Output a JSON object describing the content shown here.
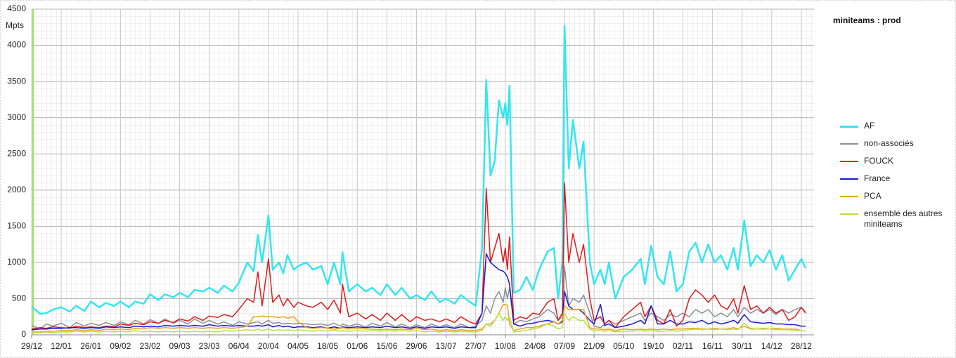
{
  "chart_data": {
    "type": "line",
    "title": "miniteams : prod",
    "y_label": "Mpts",
    "xlim": [
      0,
      370
    ],
    "ylim": [
      0,
      4500
    ],
    "yticks": [
      0,
      500,
      1000,
      1500,
      2000,
      2500,
      3000,
      3500,
      4000,
      4500
    ],
    "xticks": [
      {
        "value": 0,
        "label": "29/12"
      },
      {
        "value": 14,
        "label": "12/01"
      },
      {
        "value": 28,
        "label": "26/01"
      },
      {
        "value": 42,
        "label": "09/02"
      },
      {
        "value": 56,
        "label": "23/02"
      },
      {
        "value": 70,
        "label": "09/03"
      },
      {
        "value": 84,
        "label": "23/03"
      },
      {
        "value": 98,
        "label": "06/04"
      },
      {
        "value": 112,
        "label": "20/04"
      },
      {
        "value": 126,
        "label": "04/05"
      },
      {
        "value": 140,
        "label": "18/05"
      },
      {
        "value": 154,
        "label": "01/06"
      },
      {
        "value": 168,
        "label": "15/06"
      },
      {
        "value": 182,
        "label": "29/06"
      },
      {
        "value": 196,
        "label": "13/07"
      },
      {
        "value": 210,
        "label": "27/07"
      },
      {
        "value": 224,
        "label": "10/08"
      },
      {
        "value": 238,
        "label": "24/08"
      },
      {
        "value": 252,
        "label": "07/09"
      },
      {
        "value": 266,
        "label": "21/09"
      },
      {
        "value": 280,
        "label": "05/10"
      },
      {
        "value": 294,
        "label": "19/10"
      },
      {
        "value": 308,
        "label": "02/11"
      },
      {
        "value": 322,
        "label": "16/11"
      },
      {
        "value": 336,
        "label": "30/11"
      },
      {
        "value": 350,
        "label": "14/12"
      },
      {
        "value": 364,
        "label": "28/12"
      }
    ],
    "grid": true,
    "x": [
      0,
      4,
      7,
      10,
      14,
      18,
      21,
      25,
      28,
      32,
      35,
      39,
      42,
      46,
      49,
      53,
      56,
      60,
      63,
      67,
      70,
      74,
      77,
      81,
      84,
      88,
      91,
      95,
      98,
      102,
      105,
      107,
      109,
      112,
      114,
      117,
      119,
      121,
      124,
      126,
      130,
      133,
      137,
      140,
      143,
      146,
      147,
      150,
      154,
      158,
      161,
      165,
      168,
      172,
      175,
      179,
      182,
      186,
      189,
      193,
      196,
      200,
      203,
      207,
      210,
      213,
      215,
      217,
      219,
      221,
      223,
      224,
      225,
      226,
      228,
      231,
      234,
      237,
      240,
      244,
      247,
      249,
      251,
      252,
      254,
      256,
      259,
      261,
      264,
      266,
      269,
      271,
      273,
      276,
      280,
      284,
      288,
      290,
      293,
      296,
      299,
      302,
      305,
      308,
      311,
      314,
      317,
      320,
      323,
      326,
      329,
      332,
      334,
      337,
      340,
      343,
      346,
      349,
      352,
      355,
      358,
      361,
      364,
      366
    ],
    "series": [
      {
        "name": "AF",
        "color": "#33e6f0",
        "width": 2.5,
        "values": [
          390,
          290,
          300,
          350,
          380,
          320,
          400,
          330,
          460,
          380,
          440,
          400,
          460,
          380,
          460,
          430,
          560,
          480,
          560,
          520,
          580,
          520,
          620,
          600,
          650,
          580,
          680,
          600,
          720,
          1000,
          880,
          1380,
          1000,
          1650,
          900,
          1000,
          850,
          1100,
          900,
          950,
          1000,
          900,
          950,
          700,
          1000,
          700,
          1140,
          600,
          700,
          600,
          650,
          550,
          700,
          550,
          650,
          500,
          550,
          480,
          600,
          450,
          500,
          430,
          550,
          460,
          400,
          1200,
          3520,
          2200,
          2400,
          3240,
          3000,
          3200,
          2900,
          3440,
          580,
          620,
          800,
          620,
          900,
          1150,
          1200,
          500,
          1000,
          4270,
          2300,
          2970,
          2300,
          2670,
          1000,
          700,
          900,
          700,
          1000,
          500,
          800,
          900,
          1050,
          700,
          1230,
          800,
          700,
          1150,
          600,
          700,
          1150,
          1270,
          1000,
          1250,
          1000,
          1100,
          900,
          1200,
          900,
          1580,
          950,
          1100,
          1000,
          1170,
          900,
          1100,
          750,
          900,
          1050,
          920
        ]
      },
      {
        "name": "non-associés",
        "color": "#8a8f99",
        "width": 1.5,
        "values": [
          130,
          80,
          150,
          120,
          160,
          100,
          170,
          120,
          160,
          130,
          170,
          130,
          180,
          140,
          200,
          150,
          210,
          160,
          220,
          160,
          200,
          150,
          220,
          160,
          200,
          150,
          180,
          130,
          180,
          150,
          170,
          180,
          150,
          200,
          160,
          170,
          150,
          160,
          150,
          160,
          150,
          140,
          150,
          130,
          160,
          120,
          150,
          120,
          150,
          110,
          160,
          120,
          170,
          110,
          150,
          100,
          140,
          100,
          150,
          110,
          140,
          100,
          150,
          100,
          120,
          200,
          400,
          300,
          500,
          600,
          450,
          650,
          500,
          650,
          150,
          200,
          180,
          220,
          250,
          350,
          300,
          200,
          250,
          950,
          400,
          500,
          450,
          550,
          300,
          120,
          100,
          150,
          200,
          150,
          200,
          250,
          300,
          200,
          300,
          250,
          200,
          280,
          250,
          300,
          250,
          350,
          300,
          350,
          250,
          300,
          250,
          350,
          250,
          380,
          300,
          350,
          300,
          350,
          280,
          350,
          300,
          350,
          380,
          320
        ]
      },
      {
        "name": "FOUCK",
        "color": "#e01a1a",
        "width": 1.5,
        "values": [
          80,
          100,
          90,
          110,
          100,
          90,
          120,
          100,
          110,
          100,
          120,
          110,
          150,
          130,
          160,
          140,
          180,
          160,
          200,
          170,
          220,
          190,
          250,
          200,
          260,
          240,
          280,
          250,
          350,
          500,
          450,
          870,
          400,
          1050,
          450,
          550,
          400,
          500,
          380,
          450,
          400,
          380,
          450,
          350,
          480,
          300,
          700,
          250,
          300,
          220,
          280,
          200,
          300,
          200,
          280,
          180,
          250,
          200,
          220,
          180,
          220,
          170,
          250,
          180,
          150,
          300,
          2020,
          1000,
          1200,
          1400,
          1000,
          1200,
          900,
          1350,
          200,
          250,
          220,
          300,
          280,
          450,
          500,
          200,
          300,
          2100,
          1000,
          1400,
          1000,
          1250,
          500,
          200,
          250,
          150,
          200,
          100,
          250,
          350,
          450,
          250,
          400,
          200,
          150,
          350,
          120,
          200,
          500,
          620,
          550,
          450,
          550,
          400,
          350,
          500,
          300,
          680,
          350,
          400,
          300,
          380,
          300,
          350,
          200,
          250,
          380,
          300
        ]
      },
      {
        "name": "France",
        "color": "#1a1ad0",
        "width": 1.5,
        "values": [
          70,
          80,
          80,
          90,
          90,
          100,
          100,
          90,
          100,
          90,
          110,
          100,
          110,
          100,
          120,
          110,
          120,
          110,
          130,
          120,
          130,
          120,
          130,
          120,
          140,
          120,
          130,
          120,
          130,
          120,
          120,
          130,
          120,
          140,
          110,
          130,
          110,
          120,
          100,
          110,
          110,
          100,
          110,
          90,
          110,
          90,
          110,
          100,
          110,
          100,
          110,
          100,
          120,
          100,
          110,
          90,
          110,
          90,
          110,
          100,
          110,
          90,
          110,
          100,
          100,
          300,
          1120,
          1000,
          950,
          900,
          880,
          850,
          800,
          700,
          150,
          120,
          150,
          160,
          180,
          200,
          180,
          150,
          180,
          600,
          400,
          350,
          350,
          300,
          200,
          150,
          420,
          130,
          150,
          100,
          120,
          150,
          200,
          150,
          400,
          150,
          150,
          200,
          150,
          150,
          180,
          170,
          200,
          150,
          180,
          150,
          170,
          200,
          160,
          280,
          180,
          170,
          160,
          170,
          150,
          150,
          140,
          140,
          120,
          120
        ]
      },
      {
        "name": "PCA",
        "color": "#f0a020",
        "width": 1.5,
        "values": [
          40,
          40,
          50,
          50,
          60,
          60,
          70,
          60,
          70,
          60,
          80,
          70,
          80,
          70,
          90,
          80,
          100,
          90,
          100,
          90,
          100,
          90,
          100,
          90,
          100,
          90,
          100,
          90,
          100,
          120,
          250,
          250,
          260,
          250,
          250,
          240,
          250,
          230,
          250,
          180,
          100,
          90,
          100,
          90,
          80,
          90,
          100,
          80,
          90,
          80,
          80,
          70,
          80,
          70,
          80,
          70,
          90,
          70,
          80,
          60,
          70,
          60,
          70,
          60,
          60,
          80,
          150,
          150,
          200,
          300,
          420,
          420,
          410,
          150,
          60,
          80,
          100,
          100,
          120,
          150,
          180,
          150,
          200,
          400,
          350,
          350,
          350,
          350,
          100,
          80,
          80,
          70,
          80,
          60,
          80,
          70,
          80,
          70,
          80,
          70,
          80,
          70,
          80,
          80,
          90,
          90,
          80,
          80,
          90,
          80,
          80,
          100,
          80,
          120,
          80,
          80,
          90,
          80,
          90,
          80,
          80,
          80,
          60,
          50
        ]
      },
      {
        "name": "ensemble des autres miniteams",
        "color": "#b8e040",
        "width": 1.5,
        "values": [
          30,
          30,
          40,
          30,
          40,
          40,
          50,
          40,
          50,
          40,
          50,
          40,
          50,
          40,
          60,
          40,
          50,
          40,
          50,
          40,
          50,
          40,
          50,
          40,
          50,
          40,
          60,
          50,
          60,
          70,
          60,
          80,
          60,
          80,
          60,
          70,
          60,
          70,
          60,
          70,
          60,
          50,
          60,
          50,
          70,
          50,
          60,
          50,
          60,
          50,
          60,
          50,
          60,
          50,
          60,
          50,
          60,
          40,
          50,
          40,
          50,
          40,
          50,
          40,
          40,
          60,
          150,
          120,
          200,
          300,
          200,
          250,
          200,
          250,
          40,
          50,
          60,
          80,
          100,
          150,
          120,
          80,
          100,
          300,
          200,
          250,
          200,
          200,
          80,
          50,
          60,
          50,
          60,
          40,
          50,
          50,
          60,
          50,
          60,
          50,
          50,
          60,
          50,
          60,
          70,
          80,
          70,
          80,
          70,
          80,
          70,
          80,
          70,
          160,
          90,
          80,
          80,
          80,
          70,
          70,
          70,
          60,
          60,
          50
        ]
      }
    ]
  }
}
